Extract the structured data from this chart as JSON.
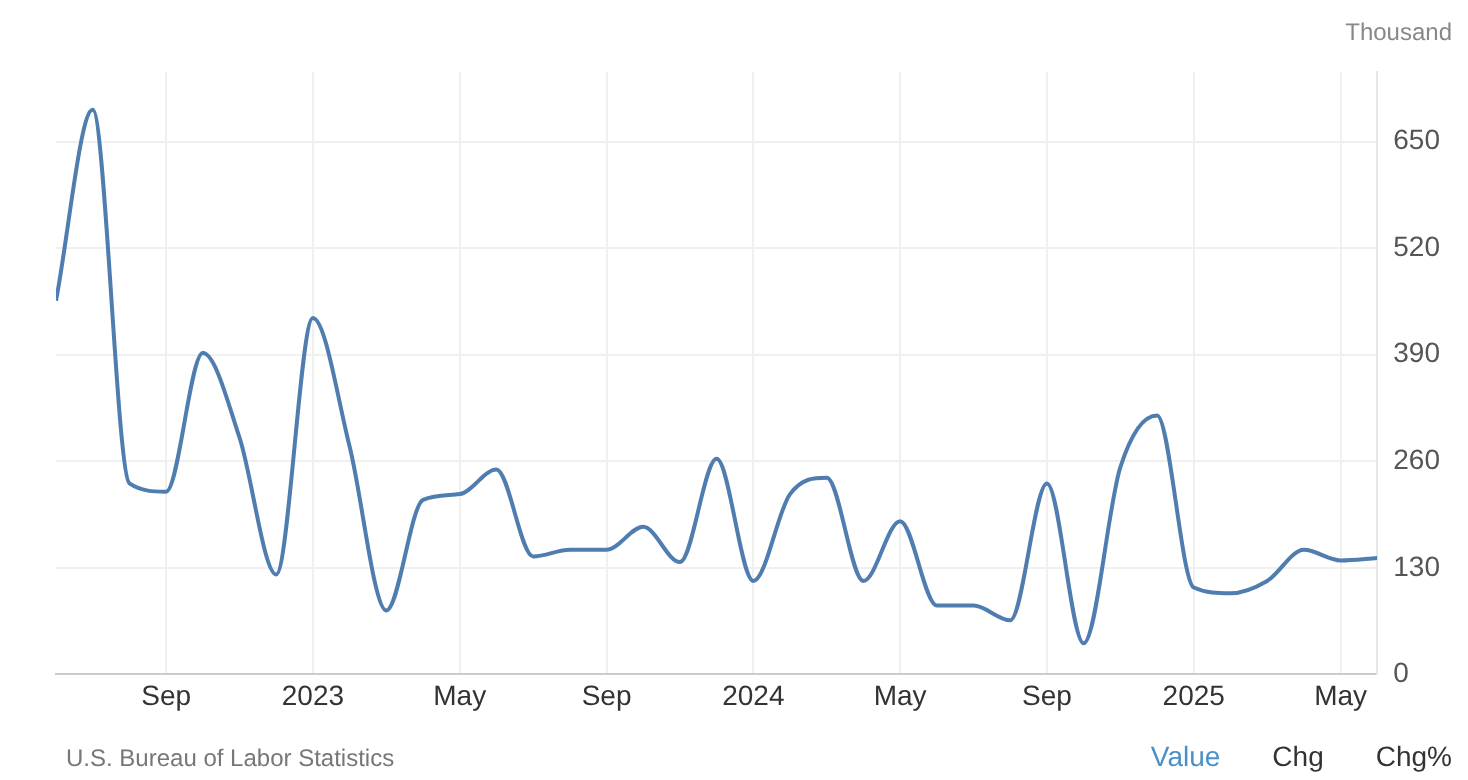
{
  "chart_data": {
    "type": "line",
    "ylabel": "Thousand",
    "x": [
      "2022-06",
      "2022-07",
      "2022-08",
      "2022-09",
      "2022-10",
      "2022-11",
      "2022-12",
      "2023-01",
      "2023-02",
      "2023-03",
      "2023-04",
      "2023-05",
      "2023-06",
      "2023-07",
      "2023-08",
      "2023-09",
      "2023-10",
      "2023-11",
      "2023-12",
      "2024-01",
      "2024-02",
      "2024-03",
      "2024-04",
      "2024-05",
      "2024-06",
      "2024-07",
      "2024-08",
      "2024-09",
      "2024-10",
      "2024-11",
      "2024-12",
      "2025-01",
      "2025-02",
      "2025-03",
      "2025-04",
      "2025-05",
      "2025-06"
    ],
    "series": [
      {
        "color": "#4f7db0",
        "values": [
          456,
          689,
          233,
          223,
          392,
          289,
          122,
          435,
          278,
          78,
          213,
          220,
          250,
          144,
          152,
          152,
          180,
          137,
          263,
          114,
          220,
          240,
          114,
          187,
          84,
          84,
          66,
          233,
          38,
          253,
          316,
          106,
          99,
          114,
          152,
          139,
          142
        ]
      }
    ],
    "xlim": [
      "2022-06",
      "2025-06"
    ],
    "xticks": [
      {
        "value": "2022-09",
        "label": "Sep"
      },
      {
        "value": "2023-01",
        "label": "2023"
      },
      {
        "value": "2023-05",
        "label": "May"
      },
      {
        "value": "2023-09",
        "label": "Sep"
      },
      {
        "value": "2024-01",
        "label": "2024"
      },
      {
        "value": "2024-05",
        "label": "May"
      },
      {
        "value": "2024-09",
        "label": "Sep"
      },
      {
        "value": "2025-01",
        "label": "2025"
      },
      {
        "value": "2025-05",
        "label": "May"
      }
    ],
    "ylim": [
      0,
      735
    ],
    "yticks": [
      0,
      130,
      260,
      390,
      520,
      650
    ],
    "grid": true,
    "legend": false,
    "marker": "none",
    "line_style": "solid",
    "annotations": [
      "U.S. Bureau of Labor Statistics",
      "Value",
      "Chg",
      "Chg%"
    ]
  }
}
